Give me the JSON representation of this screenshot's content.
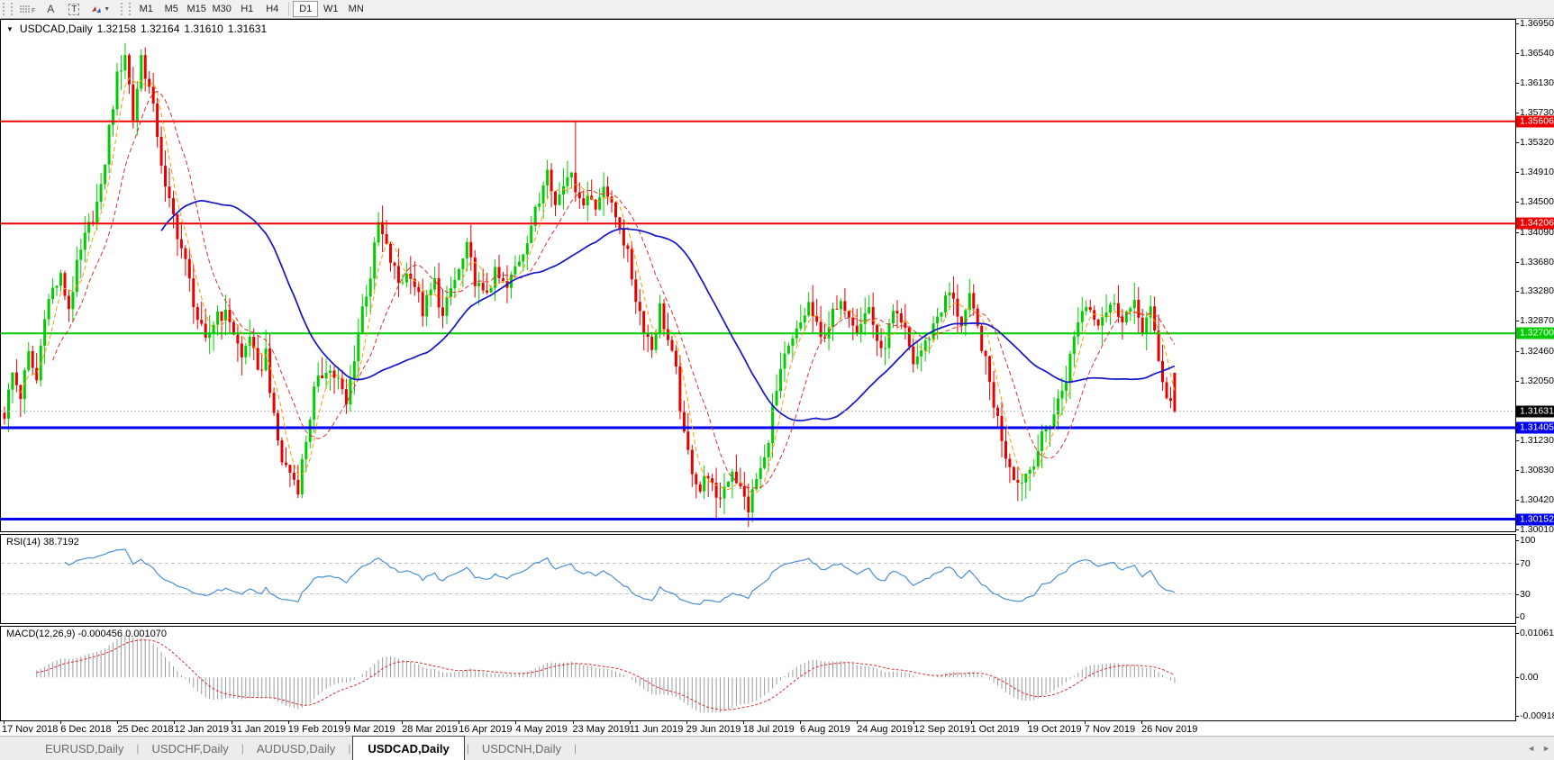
{
  "toolbar": {
    "tool_fibonacci": "F",
    "tool_text_label": "A",
    "tool_text": "T",
    "timeframes": [
      "M1",
      "M5",
      "M15",
      "M30",
      "H1",
      "H4",
      "D1",
      "W1",
      "MN"
    ],
    "active_timeframe": "D1"
  },
  "chart_header": {
    "symbol_period": "USDCAD,Daily",
    "open": "1.32158",
    "high": "1.32164",
    "low": "1.31610",
    "close": "1.31631"
  },
  "price_axis": {
    "ticks": [
      1.3695,
      1.3654,
      1.3613,
      1.3573,
      1.3532,
      1.3491,
      1.345,
      1.3409,
      1.3368,
      1.3328,
      1.3287,
      1.3246,
      1.3205,
      1.3123,
      1.3083,
      1.3042,
      1.3001
    ]
  },
  "hlines": [
    {
      "price": 1.35606,
      "label": "1.35606",
      "color": "#ee0000",
      "width": 2,
      "label_bg": "#ee0000",
      "label_fg": "#ffffff"
    },
    {
      "price": 1.34206,
      "label": "1.34206",
      "color": "#ee0000",
      "width": 2,
      "label_bg": "#ee0000",
      "label_fg": "#ffffff"
    },
    {
      "price": 1.327,
      "label": "1.32700",
      "color": "#00cc00",
      "width": 2,
      "label_bg": "#00cc00",
      "label_fg": "#ffffff"
    },
    {
      "price": 1.31405,
      "label": "1.31405",
      "color": "#0000ee",
      "width": 3,
      "label_bg": "#0000ee",
      "label_fg": "#ffffff"
    },
    {
      "price": 1.30152,
      "label": "1.30152",
      "color": "#0000ee",
      "width": 3,
      "label_bg": "#0000ee",
      "label_fg": "#ffffff"
    }
  ],
  "current_price": {
    "value": 1.31631,
    "label": "1.31631",
    "line_color": "#b8b8b8",
    "label_bg": "#000000",
    "label_fg": "#ffffff"
  },
  "rsi": {
    "title": "RSI(14) 38.7192",
    "period": 14,
    "last_value": 38.7192,
    "axis_labels": [
      "100",
      "70",
      "30",
      "0"
    ],
    "axis_values": [
      100,
      70,
      30,
      0
    ],
    "level_lines": [
      70,
      30
    ],
    "line_color": "#4a8ed5",
    "level_color": "#c4c4c4"
  },
  "macd": {
    "title": "MACD(12,26,9) -0.000456 0.001070",
    "fast": 12,
    "slow": 26,
    "signal": 9,
    "last_macd": -0.000456,
    "last_signal": 0.00107,
    "axis_labels": [
      "0.010615",
      "0.00",
      "-0.009185"
    ],
    "axis_values": [
      0.010615,
      0.0,
      -0.009185
    ],
    "hist_color": "#9b9b9b",
    "signal_color": "#d93030"
  },
  "dates": [
    "17 Nov 2018",
    "6 Dec 2018",
    "25 Dec 2018",
    "12 Jan 2019",
    "31 Jan 2019",
    "19 Feb 2019",
    "9 Mar 2019",
    "28 Mar 2019",
    "16 Apr 2019",
    "4 May 2019",
    "23 May 2019",
    "11 Jun 2019",
    "29 Jun 2019",
    "18 Jul 2019",
    "6 Aug 2019",
    "24 Aug 2019",
    "12 Sep 2019",
    "1 Oct 2019",
    "19 Oct 2019",
    "7 Nov 2019",
    "26 Nov 2019"
  ],
  "tabs": [
    {
      "label": "EURUSD,Daily",
      "active": false
    },
    {
      "label": "USDCHF,Daily",
      "active": false
    },
    {
      "label": "AUDUSD,Daily",
      "active": false
    },
    {
      "label": "USDCAD,Daily",
      "active": true
    },
    {
      "label": "USDCNH,Daily",
      "active": false
    }
  ],
  "tab_scroll": {
    "left": "◄",
    "right": "►"
  },
  "chart_data": {
    "type": "candlestick",
    "symbol": "USDCAD",
    "timeframe": "Daily",
    "n_bars": 292,
    "ylim": [
      1.3001,
      1.3695
    ],
    "bull_color": "#00cd00",
    "bear_color": "#e60000",
    "price_anchors": [
      [
        0,
        1.316
      ],
      [
        2,
        1.3215
      ],
      [
        4,
        1.3185
      ],
      [
        6,
        1.324
      ],
      [
        8,
        1.3205
      ],
      [
        10,
        1.33
      ],
      [
        12,
        1.333
      ],
      [
        14,
        1.3345
      ],
      [
        16,
        1.3305
      ],
      [
        18,
        1.336
      ],
      [
        20,
        1.34
      ],
      [
        22,
        1.343
      ],
      [
        24,
        1.3465
      ],
      [
        26,
        1.355
      ],
      [
        28,
        1.362
      ],
      [
        30,
        1.3655
      ],
      [
        32,
        1.3565
      ],
      [
        34,
        1.365
      ],
      [
        36,
        1.3605
      ],
      [
        38,
        1.3545
      ],
      [
        40,
        1.3465
      ],
      [
        42,
        1.343
      ],
      [
        45,
        1.3365
      ],
      [
        48,
        1.329
      ],
      [
        50,
        1.3255
      ],
      [
        53,
        1.33
      ],
      [
        56,
        1.329
      ],
      [
        59,
        1.3235
      ],
      [
        61,
        1.327
      ],
      [
        63,
        1.321
      ],
      [
        65,
        1.3245
      ],
      [
        67,
        1.315
      ],
      [
        69,
        1.3095
      ],
      [
        71,
        1.308
      ],
      [
        73,
        1.306
      ],
      [
        75,
        1.3125
      ],
      [
        77,
        1.319
      ],
      [
        80,
        1.3225
      ],
      [
        83,
        1.3205
      ],
      [
        85,
        1.317
      ],
      [
        87,
        1.324
      ],
      [
        89,
        1.3305
      ],
      [
        91,
        1.335
      ],
      [
        93,
        1.342
      ],
      [
        95,
        1.3385
      ],
      [
        98,
        1.334
      ],
      [
        101,
        1.3355
      ],
      [
        104,
        1.33
      ],
      [
        107,
        1.334
      ],
      [
        109,
        1.329
      ],
      [
        111,
        1.333
      ],
      [
        113,
        1.3355
      ],
      [
        115,
        1.3385
      ],
      [
        117,
        1.3345
      ],
      [
        119,
        1.332
      ],
      [
        122,
        1.335
      ],
      [
        125,
        1.333
      ],
      [
        127,
        1.336
      ],
      [
        129,
        1.3385
      ],
      [
        131,
        1.342
      ],
      [
        133,
        1.345
      ],
      [
        135,
        1.3505
      ],
      [
        137,
        1.3445
      ],
      [
        139,
        1.3475
      ],
      [
        141,
        1.35
      ],
      [
        143,
        1.3445
      ],
      [
        145,
        1.3465
      ],
      [
        147,
        1.344
      ],
      [
        149,
        1.348
      ],
      [
        151,
        1.344
      ],
      [
        153,
        1.342
      ],
      [
        155,
        1.3375
      ],
      [
        157,
        1.332
      ],
      [
        159,
        1.328
      ],
      [
        161,
        1.325
      ],
      [
        163,
        1.3305
      ],
      [
        165,
        1.326
      ],
      [
        167,
        1.3215
      ],
      [
        169,
        1.3125
      ],
      [
        171,
        1.3085
      ],
      [
        173,
        1.3055
      ],
      [
        175,
        1.308
      ],
      [
        177,
        1.3035
      ],
      [
        179,
        1.306
      ],
      [
        181,
        1.3085
      ],
      [
        183,
        1.3055
      ],
      [
        185,
        1.303
      ],
      [
        187,
        1.307
      ],
      [
        189,
        1.3095
      ],
      [
        191,
        1.3165
      ],
      [
        194,
        1.3235
      ],
      [
        197,
        1.327
      ],
      [
        200,
        1.331
      ],
      [
        203,
        1.326
      ],
      [
        206,
        1.3295
      ],
      [
        209,
        1.331
      ],
      [
        212,
        1.328
      ],
      [
        215,
        1.3305
      ],
      [
        218,
        1.324
      ],
      [
        221,
        1.3295
      ],
      [
        224,
        1.327
      ],
      [
        226,
        1.323
      ],
      [
        229,
        1.3255
      ],
      [
        232,
        1.3295
      ],
      [
        235,
        1.3325
      ],
      [
        238,
        1.3285
      ],
      [
        240,
        1.3315
      ],
      [
        243,
        1.3255
      ],
      [
        246,
        1.3175
      ],
      [
        249,
        1.3105
      ],
      [
        252,
        1.3065
      ],
      [
        255,
        1.3085
      ],
      [
        258,
        1.3125
      ],
      [
        261,
        1.316
      ],
      [
        264,
        1.321
      ],
      [
        267,
        1.329
      ],
      [
        269,
        1.331
      ],
      [
        272,
        1.329
      ],
      [
        275,
        1.331
      ],
      [
        278,
        1.3295
      ],
      [
        281,
        1.3305
      ],
      [
        283,
        1.328
      ],
      [
        285,
        1.33
      ],
      [
        287,
        1.323
      ],
      [
        289,
        1.3185
      ],
      [
        291,
        1.3163
      ]
    ],
    "spike_highs": [
      [
        30,
        1.3662
      ],
      [
        34,
        1.3656
      ],
      [
        142,
        1.356
      ]
    ],
    "spike_lows": [
      [
        177,
        1.3016
      ],
      [
        179,
        1.3022
      ],
      [
        186,
        1.3024
      ],
      [
        252,
        1.304
      ]
    ],
    "last_bar": {
      "open": 1.32158,
      "high": 1.32164,
      "low": 1.3161,
      "close": 1.31631
    },
    "moving_averages": [
      {
        "period": 5,
        "color": "#ff9a00",
        "style": "dashed",
        "width": 1
      },
      {
        "period": 13,
        "color": "#d93030",
        "style": "dashed",
        "width": 1
      },
      {
        "period": 40,
        "color": "#1414c8",
        "style": "solid",
        "width": 1.7
      }
    ]
  }
}
